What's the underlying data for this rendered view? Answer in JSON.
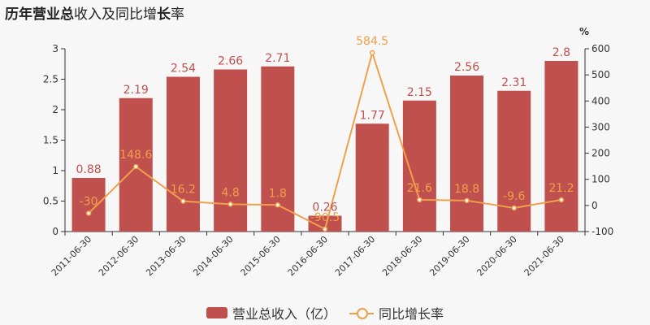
{
  "title": {
    "bold_part1": "历年",
    "bold_part2": "营业总",
    "normal_part": "收入及同比增",
    "bold_part3": "长",
    "normal_part2": "率"
  },
  "colors": {
    "bar": "#c0504d",
    "line": "#f0a04b",
    "bar_label": "#c0504d",
    "line_label": "#f0a04b"
  },
  "legend": {
    "bar_label": "营业总收入（亿）",
    "line_label": "同比增长率"
  },
  "chart_data": {
    "type": "bar+line",
    "categories": [
      "2011-06-30",
      "2012-06-30",
      "2013-06-30",
      "2014-06-30",
      "2015-06-30",
      "2016-06-30",
      "2017-06-30",
      "2018-06-30",
      "2019-06-30",
      "2020-06-30",
      "2021-06-30"
    ],
    "series": [
      {
        "name": "营业总收入（亿）",
        "type": "bar",
        "axis": "left",
        "values": [
          0.88,
          2.19,
          2.54,
          2.66,
          2.71,
          0.26,
          1.77,
          2.15,
          2.56,
          2.31,
          2.8
        ],
        "labels": [
          "0.88",
          "2.19",
          "2.54",
          "2.66",
          "2.71",
          "0.26",
          "1.77",
          "2.15",
          "2.56",
          "2.31",
          "2.8"
        ]
      },
      {
        "name": "同比增长率",
        "type": "line",
        "axis": "right",
        "values": [
          -30,
          148.6,
          16.2,
          4.8,
          1.8,
          -90.5,
          584.5,
          21.6,
          18.8,
          -9.6,
          21.2
        ],
        "labels": [
          "-30",
          "148.6",
          "16.2",
          "4.8",
          "1.8",
          "-90.5",
          "584.5",
          "21.6",
          "18.8",
          "-9.6",
          "21.2"
        ]
      }
    ],
    "left_axis": {
      "min": 0,
      "max": 3,
      "ticks": [
        "0",
        "0.5",
        "1",
        "1.5",
        "2",
        "2.5",
        "3"
      ],
      "tick_values": [
        0,
        0.5,
        1,
        1.5,
        2,
        2.5,
        3
      ]
    },
    "right_axis": {
      "min": -100,
      "max": 600,
      "unit": "%",
      "ticks": [
        "-100",
        "0",
        "100",
        "200",
        "300",
        "400",
        "500",
        "600"
      ],
      "tick_values": [
        -100,
        0,
        100,
        200,
        300,
        400,
        500,
        600
      ]
    },
    "grid": false,
    "legend_position": "bottom"
  }
}
